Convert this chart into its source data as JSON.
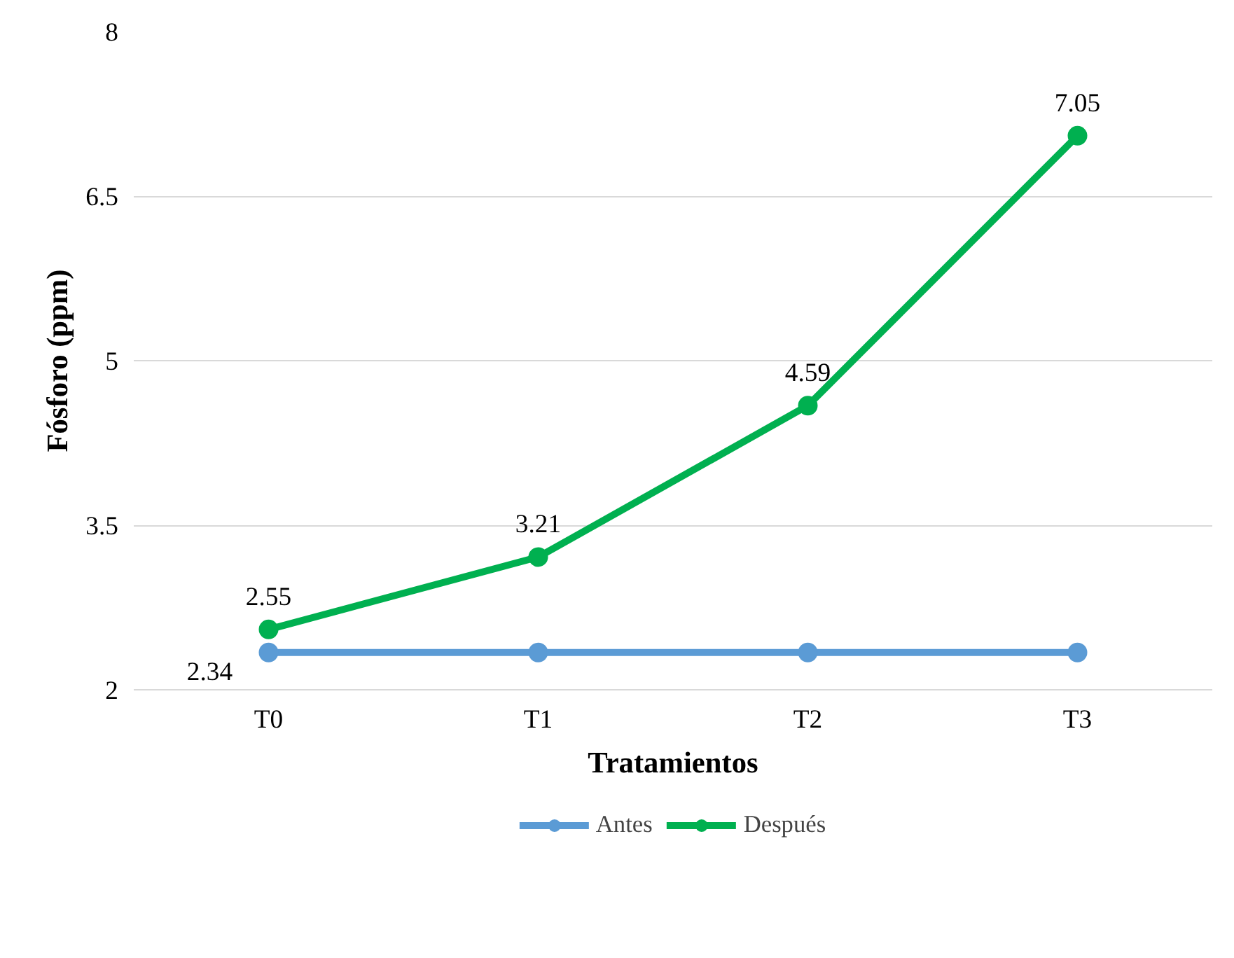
{
  "chart_data": {
    "type": "line",
    "xlabel": "Tratamientos",
    "ylabel": "Fósforo (ppm)",
    "categories": [
      "T0",
      "T1",
      "T2",
      "T3"
    ],
    "ylim": [
      2,
      8
    ],
    "yticks": [
      2,
      3.5,
      5,
      6.5,
      8
    ],
    "grid": "y",
    "legend": "bottom",
    "marker": "circle",
    "line_style": "solid",
    "series": [
      {
        "name": "Antes",
        "color": "#5b9bd5",
        "values": [
          2.34,
          2.34,
          2.34,
          2.34
        ],
        "value_labels": [
          "2.34",
          null,
          null,
          null
        ]
      },
      {
        "name": "Después",
        "color": "#00b050",
        "values": [
          2.55,
          3.21,
          4.59,
          7.05
        ],
        "value_labels": [
          "2.55",
          "3.21",
          "4.59",
          "7.05"
        ]
      }
    ]
  }
}
